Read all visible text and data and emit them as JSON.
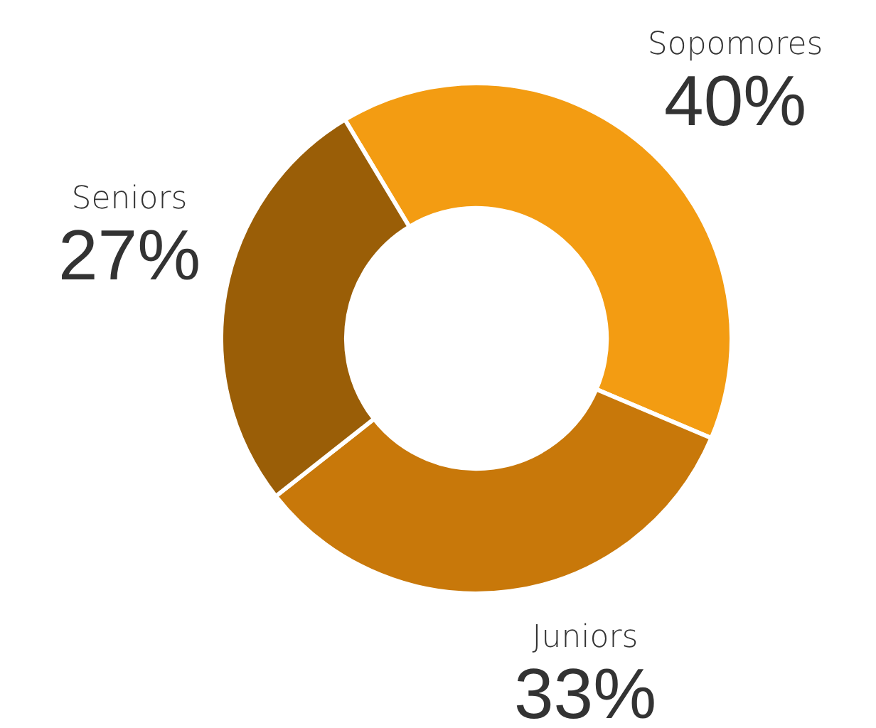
{
  "chart_data": {
    "type": "donut",
    "categories": [
      "Sopomores",
      "Juniors",
      "Seniors"
    ],
    "values": [
      40,
      33,
      27
    ],
    "value_labels": [
      "40%",
      "33%",
      "27%"
    ],
    "colors": [
      "#f39c12",
      "#c8780a",
      "#9a5e07"
    ],
    "legend": false
  }
}
